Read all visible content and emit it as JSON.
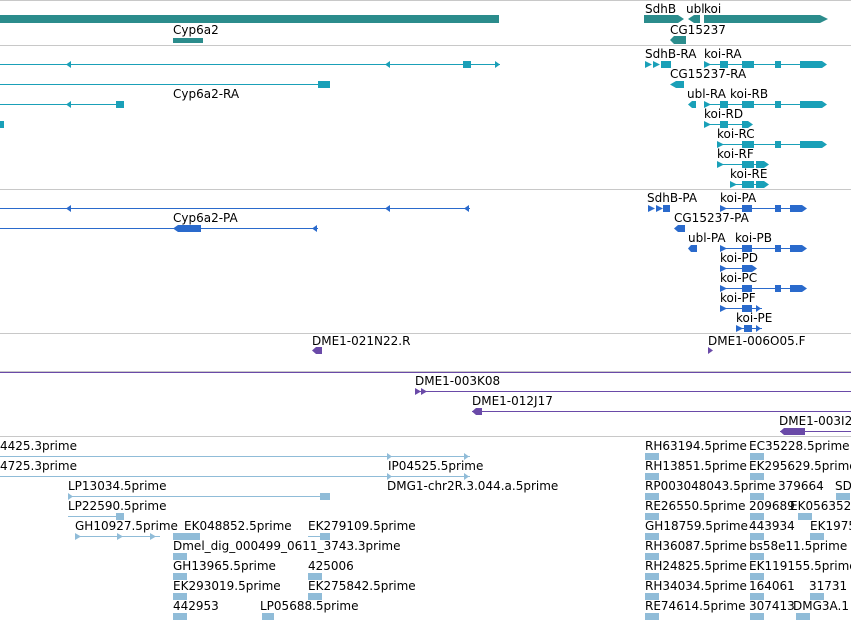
{
  "colors": {
    "gene": "#2b8c8c",
    "rna": "#1aa0b8",
    "protein": "#2a6acc",
    "clone": "#6a4aa8",
    "est": "#90bcd8",
    "divider": "#c8c8c8"
  },
  "tracks": {
    "gene": {
      "labels": {
        "sdhb": "SdhB",
        "ubl": "ubl",
        "koi": "koi",
        "cyp6a2": "Cyp6a2",
        "cg15237": "CG15237"
      }
    },
    "transcripts": {
      "labels": {
        "sdhb_ra": "SdhB-RA",
        "koi_ra": "koi-RA",
        "cg15237_ra": "CG15237-RA",
        "cyp6a2_ra": "Cyp6a2-RA",
        "ubl_ra": "ubl-RA",
        "koi_rb": "koi-RB",
        "koi_rd": "koi-RD",
        "koi_rc": "koi-RC",
        "koi_rf": "koi-RF",
        "koi_re": "koi-RE"
      }
    },
    "proteins": {
      "labels": {
        "sdhb_pa": "SdhB-PA",
        "koi_pa": "koi-PA",
        "cg15237_pa": "CG15237-PA",
        "cyp6a2_pa": "Cyp6a2-PA",
        "ubl_pa": "ubl-PA",
        "koi_pb": "koi-PB",
        "koi_pd": "koi-PD",
        "koi_pc": "koi-PC",
        "koi_pf": "koi-PF",
        "koi_pe": "koi-PE"
      }
    },
    "clones": {
      "labels": {
        "c1": "DME1-021N22.R",
        "c2": "DME1-006O05.F",
        "c3": "DME1-003K08",
        "c4": "DME1-012J17",
        "c5": "DME1-003I2"
      }
    },
    "ests": {
      "labels": {
        "e1": "4425.3prime",
        "e2": "4725.3prime",
        "e3": "LP13034.5prime",
        "e4": "LP22590.5prime",
        "e5": "GH10927.5prime",
        "e6": "EK048852.5prime",
        "e7": "EK279109.5prime",
        "e8": "Dmel_dig_000499_0611_3743.3prime",
        "e9": "GH13965.5prime",
        "e10": "425006",
        "e11": "EK293019.5prime",
        "e12": "EK275842.5prime",
        "e13": "442953",
        "e14": "LP05688.5prime",
        "e15": "IP04525.5prime",
        "e16": "DMG1-chr2R.3.044.a.5prime",
        "e17": "RH63194.5prime",
        "e18": "EC35228.5prime",
        "e19": "RH13851.5prime",
        "e20": "EK295629.5prime",
        "e21": "RP003048043.5prime",
        "e22": "379664",
        "e23": "SD",
        "e24": "RE26550.5prime",
        "e25": "209689",
        "e26": "EK056352",
        "e27": "GH18759.5prime",
        "e28": "443934",
        "e29": "EK1975",
        "e30": "RH36087.5prime",
        "e31": "bs58e11.5prime",
        "e32": "RH24825.5prime",
        "e33": "EK119155.5prime",
        "e34": "RH34034.5prime",
        "e35": "164061",
        "e36": "31731",
        "e37": "RE74614.5prime",
        "e38": "307413",
        "e39": "DMG3A.1"
      }
    }
  }
}
